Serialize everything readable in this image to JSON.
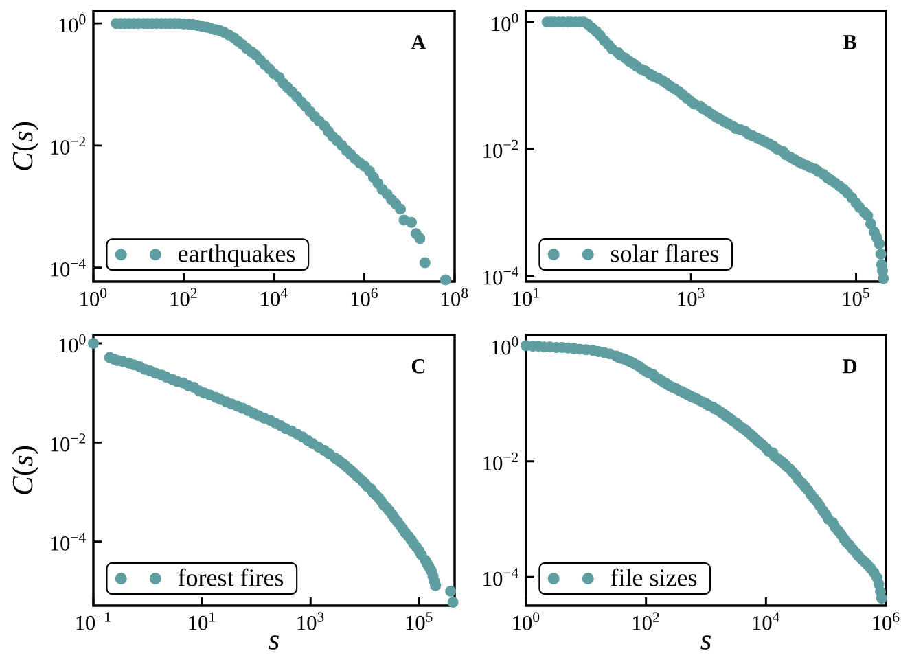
{
  "chart_data": [
    {
      "type": "scatter",
      "ylabel": "*C*(*s*)",
      "annotations": [
        "A"
      ],
      "x": [
        3.2,
        4,
        5,
        6.3,
        7.9,
        10,
        13,
        16,
        20,
        25,
        32,
        40,
        50,
        63,
        79,
        100,
        130,
        160,
        200,
        250,
        320,
        400,
        500,
        630,
        790,
        1000,
        1300,
        1600,
        2000,
        2500,
        3200,
        4000,
        5000,
        6300,
        7900,
        10000.0,
        13000.0,
        16000.0,
        20000.0,
        25000.0,
        32000.0,
        40000.0,
        50000.0,
        63000.0,
        79000.0,
        100000.0,
        130000.0,
        160000.0,
        200000.0,
        250000.0,
        320000.0,
        400000.0,
        500000.0,
        630000.0,
        790000.0,
        1000000.0,
        1300000.0,
        1600000.0,
        2000000.0,
        2500000.0,
        3200000.0,
        4000000.0,
        5000000.0,
        6300000.0,
        7600000.0,
        11000000.0,
        14000000.0,
        17000000.0,
        22000000.0,
        63000000.0
      ],
      "series": [
        {
          "name": "earthquakes",
          "color": "#5f9ea0",
          "values": [
            1,
            1,
            1,
            1,
            1,
            1,
            1,
            1,
            1,
            1,
            1,
            1,
            1,
            1,
            1,
            0.98,
            0.97,
            0.95,
            0.93,
            0.9,
            0.87,
            0.83,
            0.79,
            0.76,
            0.71,
            0.65,
            0.58,
            0.51,
            0.45,
            0.39,
            0.34,
            0.3,
            0.25,
            0.21,
            0.18,
            0.15,
            0.13,
            0.105,
            0.089,
            0.076,
            0.063,
            0.052,
            0.044,
            0.036,
            0.03,
            0.025,
            0.021,
            0.017,
            0.014,
            0.012,
            0.01,
            0.0083,
            0.0071,
            0.006,
            0.0052,
            0.0046,
            0.0038,
            0.003,
            0.0024,
            0.0019,
            0.0016,
            0.0013,
            0.0011,
            0.00091,
            0.0006,
            0.00055,
            0.00036,
            0.0003,
            0.00012,
            6.3e-05
          ]
        }
      ],
      "xlim": [
        1,
        100000000.0
      ],
      "ylim": [
        5.9e-05,
        1.6
      ],
      "xticks": [
        {
          "value": 1,
          "label": "10$^{0}$"
        },
        {
          "value": 100,
          "label": "10$^{2}$"
        },
        {
          "value": 10000.0,
          "label": "10$^{4}$"
        },
        {
          "value": 1000000.0,
          "label": "10$^{6}$"
        },
        {
          "value": 100000000.0,
          "label": "10$^{8}$"
        }
      ],
      "yticks": [
        {
          "value": 0.0001,
          "label": "10$^{−4}$"
        },
        {
          "value": 0.01,
          "label": "10$^{−2}$"
        },
        {
          "value": 1,
          "label": "10$^{0}$"
        }
      ],
      "log": "xy",
      "legend": "bottom left",
      "marker": "circle"
    },
    {
      "type": "scatter",
      "annotations": [
        "B"
      ],
      "x": [
        18,
        20,
        22,
        25,
        28,
        32,
        35,
        40,
        45,
        50,
        56,
        63,
        71,
        79,
        89,
        100,
        110,
        130,
        140,
        160,
        180,
        200,
        220,
        250,
        280,
        320,
        350,
        400,
        450,
        500,
        560,
        630,
        710,
        790,
        890,
        1000,
        1100,
        1300,
        1400,
        1600,
        1800,
        2000,
        2200,
        2500,
        2800,
        3200,
        3500,
        4000,
        4500,
        5000,
        5600,
        6300,
        7100,
        7900,
        8900,
        10000.0,
        11000.0,
        13000.0,
        14000.0,
        16000.0,
        18000.0,
        20000.0,
        22000.0,
        25000.0,
        28000.0,
        32000.0,
        35000.0,
        40000.0,
        45000.0,
        50000.0,
        56000.0,
        63000.0,
        71000.0,
        79000.0,
        89000.0,
        100000.0,
        110000.0,
        126000.0,
        138000.0,
        151000.0,
        166000.0,
        178000.0,
        191000.0,
        200000.0,
        204000.0,
        209000.0,
        214000.0
      ],
      "series": [
        {
          "name": "solar flares",
          "color": "#5f9ea0",
          "values": [
            1,
            1,
            1,
            1,
            1,
            1,
            1,
            1,
            1,
            1,
            0.93,
            0.81,
            0.71,
            0.62,
            0.51,
            0.44,
            0.38,
            0.33,
            0.3,
            0.27,
            0.24,
            0.22,
            0.2,
            0.18,
            0.17,
            0.15,
            0.14,
            0.13,
            0.12,
            0.11,
            0.098,
            0.089,
            0.081,
            0.072,
            0.063,
            0.056,
            0.051,
            0.047,
            0.043,
            0.039,
            0.035,
            0.032,
            0.03,
            0.027,
            0.025,
            0.023,
            0.021,
            0.02,
            0.019,
            0.017,
            0.016,
            0.015,
            0.014,
            0.013,
            0.012,
            0.011,
            0.01,
            0.0091,
            0.0081,
            0.0074,
            0.0068,
            0.0063,
            0.0059,
            0.0055,
            0.0051,
            0.0048,
            0.0044,
            0.004,
            0.0035,
            0.0032,
            0.0029,
            0.0026,
            0.0023,
            0.002,
            0.0017,
            0.0014,
            0.0012,
            0.001,
            0.00089,
            0.00066,
            0.00049,
            0.0004,
            0.00032,
            0.00022,
            0.00015,
            0.00012,
            9.1e-05
          ]
        }
      ],
      "xlim": [
        10,
        230000.0
      ],
      "ylim": [
        8.1e-05,
        1.5
      ],
      "xticks": [
        {
          "value": 10,
          "label": "10$^{1}$"
        },
        {
          "value": 1000,
          "label": "10$^{3}$"
        },
        {
          "value": 100000.0,
          "label": "10$^{5}$"
        }
      ],
      "yticks": [
        {
          "value": 0.0001,
          "label": "10$^{−4}$"
        },
        {
          "value": 0.01,
          "label": "10$^{−2}$"
        },
        {
          "value": 1,
          "label": "10$^{0}$"
        }
      ],
      "log": "xy",
      "legend": "bottom left",
      "marker": "circle"
    },
    {
      "type": "scatter",
      "xlabel": "s",
      "ylabel": "*C*(*s*)",
      "annotations": [
        "C"
      ],
      "x": [
        0.1,
        0.2,
        0.24,
        0.28,
        0.35,
        0.45,
        0.56,
        0.71,
        0.89,
        1.1,
        1.4,
        1.8,
        2.2,
        2.8,
        3.5,
        4.5,
        5.6,
        7.1,
        8.9,
        11,
        14,
        18,
        22,
        28,
        35,
        45,
        56,
        71,
        89,
        110,
        140,
        180,
        220,
        280,
        350,
        450,
        560,
        710,
        890,
        1100,
        1400,
        1800,
        2200,
        2800,
        3200,
        3500,
        4000,
        4500,
        5000,
        5600,
        6300,
        7100,
        7900,
        8900,
        10000.0,
        11000.0,
        13000.0,
        14000.0,
        16000.0,
        18000.0,
        20000.0,
        22000.0,
        25000.0,
        28000.0,
        32000.0,
        35000.0,
        40000.0,
        45000.0,
        50000.0,
        56000.0,
        63000.0,
        71000.0,
        79000.0,
        89000.0,
        100000.0,
        110000.0,
        130000.0,
        140000.0,
        150000.0,
        160000.0,
        170000.0,
        180000.0,
        190000.0,
        200000.0,
        380000.0,
        420000.0
      ],
      "series": [
        {
          "name": "forest fires",
          "color": "#5f9ea0",
          "values": [
            1,
            0.52,
            0.48,
            0.45,
            0.43,
            0.4,
            0.37,
            0.34,
            0.3,
            0.28,
            0.25,
            0.23,
            0.21,
            0.19,
            0.17,
            0.16,
            0.14,
            0.13,
            0.11,
            0.1,
            0.091,
            0.081,
            0.074,
            0.066,
            0.06,
            0.054,
            0.049,
            0.044,
            0.039,
            0.035,
            0.031,
            0.028,
            0.025,
            0.022,
            0.019,
            0.017,
            0.015,
            0.013,
            0.011,
            0.0095,
            0.0081,
            0.0069,
            0.0059,
            0.0049,
            0.0045,
            0.0041,
            0.0037,
            0.0033,
            0.003,
            0.0027,
            0.0024,
            0.0021,
            0.0019,
            0.0017,
            0.0015,
            0.0013,
            0.00115,
            0.001,
            0.00087,
            0.00076,
            0.00066,
            0.00056,
            0.00049,
            0.00042,
            0.00035,
            0.0003,
            0.00025,
            0.00021,
            0.00018,
            0.00015,
            0.00013,
            0.00011,
            9.1e-05,
            7.8e-05,
            6.5e-05,
            5.4e-05,
            4.2e-05,
            3.6e-05,
            3.2e-05,
            2.8e-05,
            2.5e-05,
            2e-05,
            1.6e-05,
            1.3e-05,
            1e-05,
            6e-06
          ]
        }
      ],
      "xlim": [
        0.1,
        450000.0
      ],
      "ylim": [
        5.1e-06,
        1.47
      ],
      "xticks": [
        {
          "value": 0.1,
          "label": "10$^{−1}$"
        },
        {
          "value": 10,
          "label": "10$^{1}$"
        },
        {
          "value": 1000,
          "label": "10$^{3}$"
        },
        {
          "value": 100000.0,
          "label": "10$^{5}$"
        }
      ],
      "yticks": [
        {
          "value": 0.0001,
          "label": "10$^{−4}$"
        },
        {
          "value": 0.01,
          "label": "10$^{−2}$"
        },
        {
          "value": 1,
          "label": "10$^{0}$"
        }
      ],
      "log": "xy",
      "legend": "bottom left",
      "marker": "circle"
    },
    {
      "type": "scatter",
      "xlabel": "s",
      "annotations": [
        "D"
      ],
      "x": [
        1,
        1.3,
        1.6,
        2,
        2.5,
        3.2,
        4,
        5,
        6.3,
        7.9,
        10,
        13,
        16,
        20,
        25,
        32,
        35,
        40,
        45,
        50,
        56,
        63,
        71,
        79,
        89,
        100,
        110,
        130,
        140,
        160,
        180,
        200,
        220,
        250,
        280,
        320,
        350,
        400,
        450,
        500,
        560,
        630,
        710,
        790,
        890,
        1000,
        1100,
        1300,
        1400,
        1600,
        1800,
        2000,
        2200,
        2500,
        2800,
        3200,
        3500,
        4000,
        4500,
        5000,
        5600,
        6300,
        7100,
        7900,
        8900,
        10000.0,
        11000.0,
        13000.0,
        14000.0,
        16000.0,
        18000.0,
        20000.0,
        22000.0,
        25000.0,
        28000.0,
        32000.0,
        35000.0,
        40000.0,
        45000.0,
        50000.0,
        56000.0,
        63000.0,
        71000.0,
        79000.0,
        89000.0,
        100000.0,
        110000.0,
        130000.0,
        140000.0,
        160000.0,
        180000.0,
        200000.0,
        220000.0,
        250000.0,
        280000.0,
        320000.0,
        350000.0,
        400000.0,
        450000.0,
        500000.0,
        560000.0,
        630000.0,
        710000.0,
        760000.0,
        810000.0,
        850000.0
      ],
      "series": [
        {
          "name": "file sizes",
          "color": "#5f9ea0",
          "values": [
            1,
            0.98,
            0.98,
            0.95,
            0.95,
            0.93,
            0.93,
            0.91,
            0.89,
            0.87,
            0.85,
            0.83,
            0.79,
            0.76,
            0.72,
            0.66,
            0.63,
            0.6,
            0.58,
            0.55,
            0.52,
            0.49,
            0.46,
            0.43,
            0.39,
            0.36,
            0.34,
            0.32,
            0.29,
            0.27,
            0.25,
            0.23,
            0.22,
            0.2,
            0.19,
            0.18,
            0.17,
            0.16,
            0.15,
            0.141,
            0.133,
            0.126,
            0.119,
            0.112,
            0.106,
            0.1,
            0.093,
            0.087,
            0.081,
            0.076,
            0.07,
            0.065,
            0.06,
            0.055,
            0.05,
            0.046,
            0.042,
            0.038,
            0.035,
            0.032,
            0.029,
            0.026,
            0.023,
            0.021,
            0.019,
            0.017,
            0.015,
            0.014,
            0.012,
            0.011,
            0.01,
            0.0091,
            0.0082,
            0.0074,
            0.0065,
            0.0056,
            0.0048,
            0.0042,
            0.0036,
            0.0032,
            0.0027,
            0.0023,
            0.002,
            0.0017,
            0.0014,
            0.0012,
            0.001,
            0.00087,
            0.00074,
            0.00063,
            0.00054,
            0.00046,
            0.0004,
            0.00035,
            0.0003,
            0.00026,
            0.00023,
            0.0002,
            0.00018,
            0.00016,
            0.00014,
            0.00012,
            9.8e-05,
            7.6e-05,
            5.6e-05,
            4.3e-05
          ]
        }
      ],
      "xlim": [
        1,
        1000000.0
      ],
      "ylim": [
        3.2e-05,
        1.52
      ],
      "xticks": [
        {
          "value": 1,
          "label": "10$^{0}$"
        },
        {
          "value": 100,
          "label": "10$^{2}$"
        },
        {
          "value": 10000.0,
          "label": "10$^{4}$"
        },
        {
          "value": 1000000.0,
          "label": "10$^{6}$"
        }
      ],
      "yticks": [
        {
          "value": 0.0001,
          "label": "10$^{−4}$"
        },
        {
          "value": 0.01,
          "label": "10$^{−2}$"
        },
        {
          "value": 1,
          "label": "10$^{0}$"
        }
      ],
      "log": "xy",
      "legend": "bottom left",
      "marker": "circle"
    }
  ]
}
